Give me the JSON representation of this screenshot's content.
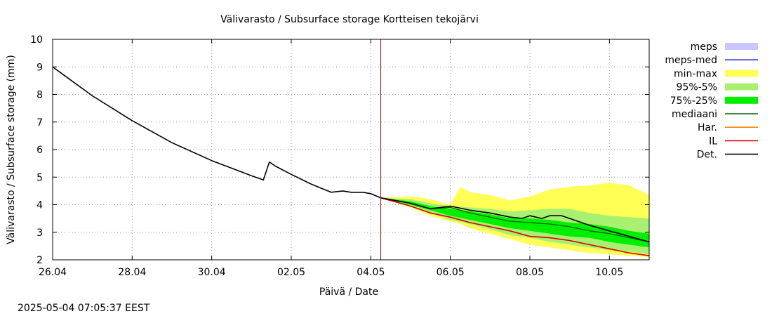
{
  "chart_data": {
    "type": "area",
    "title": "Välivarasto / Subsurface storage  Kortteisen tekojärvi",
    "xlabel": "Päivä / Date",
    "ylabel": "Välivarasto / Subsurface storage (mm)",
    "timestamp": "2025-05-04 07:05:37 EEST",
    "x_unit": "days from 26.04",
    "xlim": [
      0,
      15
    ],
    "ylim": [
      2,
      10
    ],
    "grid": true,
    "legend_position": "right",
    "x_ticks": [
      {
        "x": 0,
        "label": "26.04"
      },
      {
        "x": 2,
        "label": "28.04"
      },
      {
        "x": 4,
        "label": "30.04"
      },
      {
        "x": 6,
        "label": "02.05"
      },
      {
        "x": 8,
        "label": "04.05"
      },
      {
        "x": 10,
        "label": "06.05"
      },
      {
        "x": 12,
        "label": "08.05"
      },
      {
        "x": 14,
        "label": "10.05"
      }
    ],
    "y_ticks": [
      "2",
      "3",
      "4",
      "5",
      "6",
      "7",
      "8",
      "9",
      "10"
    ],
    "forecast_start": 8.25,
    "legend": [
      {
        "label": "meps",
        "kind": "box",
        "color": "#c8c8ff"
      },
      {
        "label": "meps-med",
        "kind": "line",
        "color": "#3333cc"
      },
      {
        "label": "min-max",
        "kind": "box",
        "color": "#ffff55"
      },
      {
        "label": "95%-5%",
        "kind": "box",
        "color": "#a8f070"
      },
      {
        "label": "75%-25%",
        "kind": "box",
        "color": "#00ee00"
      },
      {
        "label": "mediaani",
        "kind": "line",
        "color": "#006600"
      },
      {
        "label": "Har.",
        "kind": "line",
        "color": "#ff8800"
      },
      {
        "label": "IL",
        "kind": "line",
        "color": "#dd0000"
      },
      {
        "label": "Det.",
        "kind": "line",
        "color": "#000000"
      }
    ],
    "bands": [
      {
        "name": "min-max",
        "color": "#ffff55",
        "x": [
          8.25,
          9.0,
          9.5,
          10.0,
          10.25,
          10.5,
          11.0,
          11.5,
          12.0,
          12.5,
          13.0,
          13.5,
          14.0,
          14.5,
          15.0
        ],
        "upper": [
          4.25,
          4.3,
          4.2,
          4.0,
          4.65,
          4.45,
          4.35,
          4.15,
          4.3,
          4.55,
          4.65,
          4.7,
          4.8,
          4.7,
          4.35
        ],
        "lower": [
          4.25,
          3.9,
          3.6,
          3.4,
          3.3,
          3.15,
          2.95,
          2.75,
          2.55,
          2.45,
          2.35,
          2.25,
          2.2,
          2.15,
          2.1
        ]
      },
      {
        "name": "95%-5%",
        "color": "#a8f070",
        "x": [
          8.25,
          9.0,
          9.5,
          10.0,
          10.5,
          11.0,
          11.5,
          12.0,
          12.5,
          13.0,
          13.5,
          14.0,
          14.5,
          15.0
        ],
        "upper": [
          4.25,
          4.2,
          4.05,
          3.95,
          3.9,
          3.85,
          3.75,
          3.8,
          3.85,
          3.85,
          3.7,
          3.6,
          3.55,
          3.5
        ],
        "lower": [
          4.25,
          3.95,
          3.7,
          3.45,
          3.3,
          3.1,
          2.9,
          2.8,
          2.65,
          2.55,
          2.45,
          2.35,
          2.3,
          2.2
        ]
      },
      {
        "name": "75%-25%",
        "color": "#00ee00",
        "x": [
          8.25,
          9.0,
          9.5,
          10.0,
          10.5,
          11.0,
          11.5,
          12.0,
          12.5,
          13.0,
          13.5,
          14.0,
          14.5,
          15.0
        ],
        "upper": [
          4.25,
          4.12,
          3.95,
          3.85,
          3.75,
          3.65,
          3.5,
          3.5,
          3.45,
          3.35,
          3.3,
          3.2,
          3.05,
          2.95
        ],
        "lower": [
          4.25,
          4.0,
          3.8,
          3.6,
          3.45,
          3.3,
          3.15,
          3.05,
          2.95,
          2.85,
          2.8,
          2.65,
          2.55,
          2.45
        ]
      }
    ],
    "series": [
      {
        "name": "Det.",
        "color": "#000000",
        "x": [
          0,
          1,
          2,
          3,
          4,
          5,
          5.3,
          5.45,
          5.6,
          6,
          6.5,
          7,
          7.3,
          7.5,
          7.8,
          8.0,
          8.25,
          9.0,
          9.5,
          10.0,
          10.5,
          11.0,
          11.5,
          11.8,
          12.0,
          12.3,
          12.5,
          12.8,
          13.0,
          13.5,
          14.0,
          14.5,
          15.0
        ],
        "y": [
          9.0,
          7.95,
          7.05,
          6.25,
          5.6,
          5.05,
          4.9,
          5.55,
          5.4,
          5.1,
          4.75,
          4.45,
          4.5,
          4.45,
          4.45,
          4.4,
          4.25,
          4.05,
          3.85,
          3.95,
          3.8,
          3.7,
          3.55,
          3.5,
          3.6,
          3.5,
          3.6,
          3.6,
          3.5,
          3.25,
          3.05,
          2.85,
          2.65
        ]
      },
      {
        "name": "mediaani",
        "color": "#006600",
        "x": [
          8.25,
          9.0,
          9.5,
          10.0,
          10.5,
          11.0,
          11.5,
          12.0,
          12.5,
          13.0,
          13.5,
          14.0,
          14.5,
          15.0
        ],
        "y": [
          4.25,
          4.05,
          3.85,
          3.9,
          3.7,
          3.55,
          3.4,
          3.35,
          3.3,
          3.2,
          3.05,
          2.95,
          2.8,
          2.65
        ]
      },
      {
        "name": "IL",
        "color": "#dd0000",
        "x": [
          8.25,
          9.0,
          9.5,
          10.0,
          10.5,
          11.0,
          11.5,
          12.0,
          12.5,
          13.0,
          13.5,
          14.0,
          14.5,
          15.0
        ],
        "y": [
          4.25,
          3.95,
          3.7,
          3.55,
          3.35,
          3.2,
          3.05,
          2.85,
          2.8,
          2.7,
          2.55,
          2.4,
          2.25,
          2.15
        ]
      },
      {
        "name": "Har.",
        "color": "#ff8800",
        "x": [
          8.25,
          9.0,
          9.5,
          10.0,
          10.5,
          11.0,
          11.5,
          12.0,
          12.5,
          13.0,
          13.5,
          14.0,
          14.5,
          15.0
        ],
        "y": [
          4.25,
          3.95,
          3.7,
          3.55,
          3.35,
          3.2,
          3.05,
          2.85,
          2.8,
          2.7,
          2.55,
          2.4,
          2.25,
          2.15
        ]
      }
    ]
  }
}
